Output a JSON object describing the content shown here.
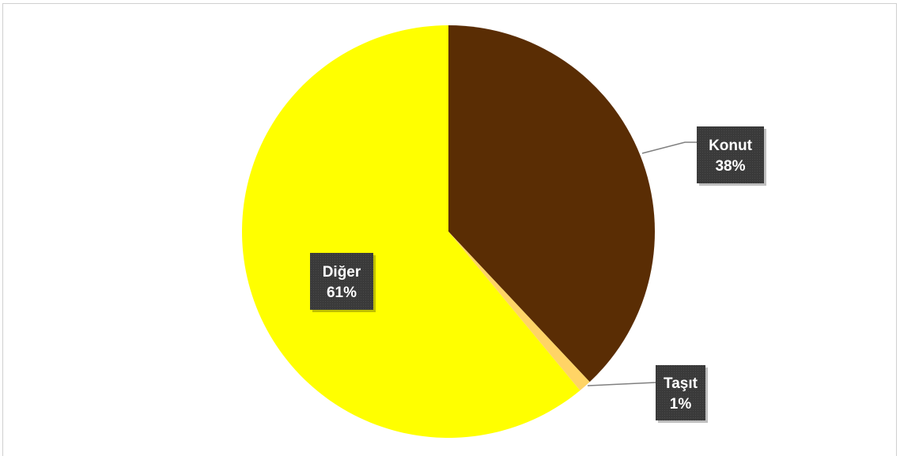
{
  "chart_data": {
    "type": "pie",
    "categories": [
      "Konut",
      "Taşıt",
      "Diğer"
    ],
    "values": [
      38,
      1,
      61
    ],
    "value_labels": [
      "38%",
      "1%",
      "61%"
    ],
    "colors": [
      "#5a2d04",
      "#ffd466",
      "#ffff00"
    ],
    "start_angle_deg": 0,
    "direction": "clockwise",
    "title": "",
    "legend": "none",
    "label_style": "dark boxes with white bold text, leader lines for outside labels"
  }
}
